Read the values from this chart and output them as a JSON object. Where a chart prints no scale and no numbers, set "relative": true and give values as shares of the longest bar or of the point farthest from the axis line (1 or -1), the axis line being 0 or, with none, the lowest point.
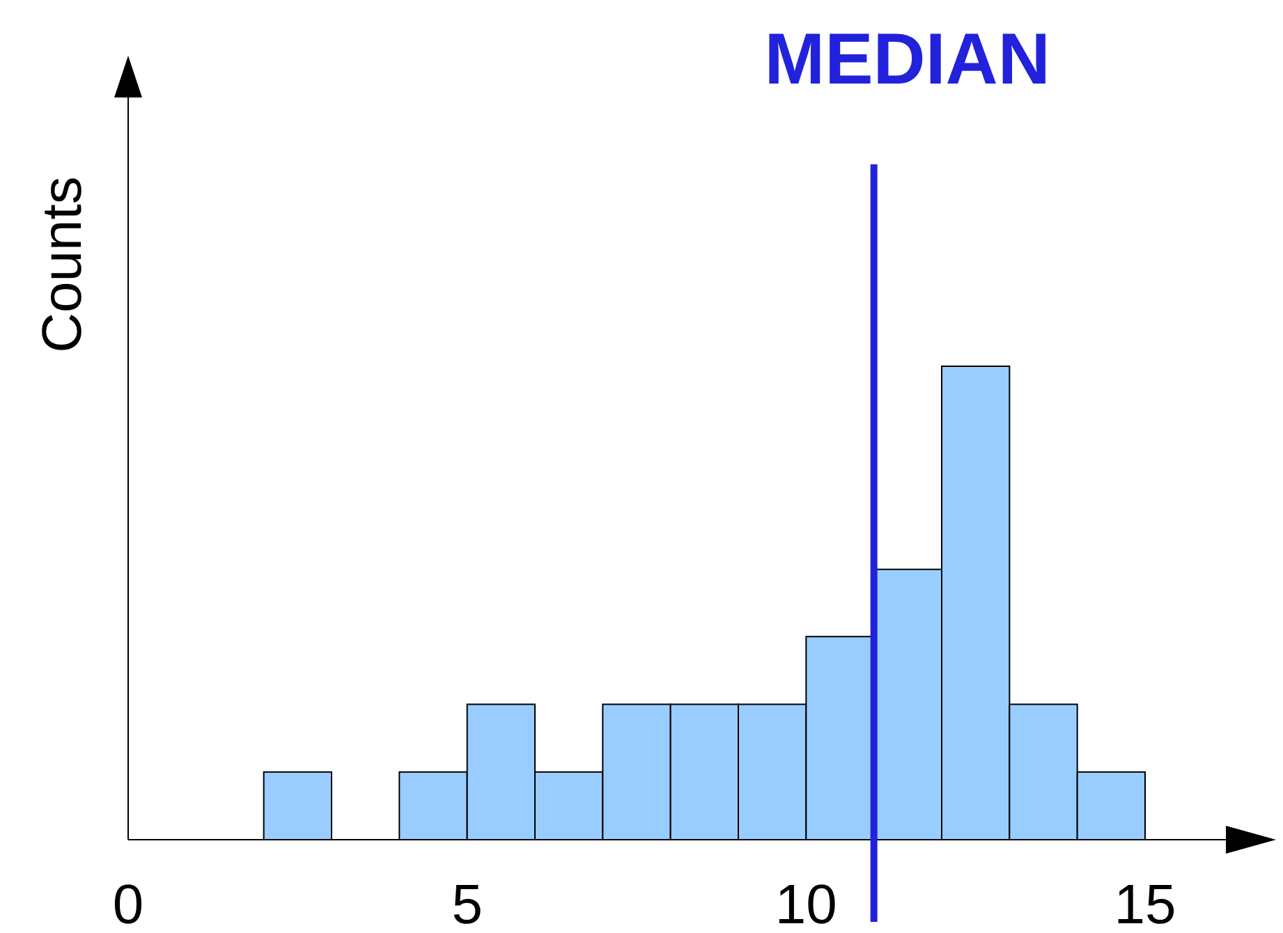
{
  "chart_data": {
    "type": "bar",
    "ylabel": "Counts",
    "relative": true,
    "x": [
      2.5,
      3.5,
      4.5,
      5.5,
      6.5,
      7.5,
      8.5,
      9.5,
      10.5,
      11.5,
      12.5,
      13.5,
      14.5
    ],
    "values": [
      0.143,
      0,
      0.143,
      0.286,
      0.143,
      0.286,
      0.286,
      0.286,
      0.429,
      0.571,
      1,
      0.286,
      0.143
    ],
    "color": "#99ccff",
    "xlim": [
      0,
      16.5
    ],
    "xticks": [
      0,
      5,
      10,
      15
    ],
    "tick_labels": "x",
    "grid": false,
    "ref_lines": [
      {
        "axis": "x",
        "value": 11,
        "label": "MEDIAN",
        "color": "#2222dd"
      }
    ]
  }
}
